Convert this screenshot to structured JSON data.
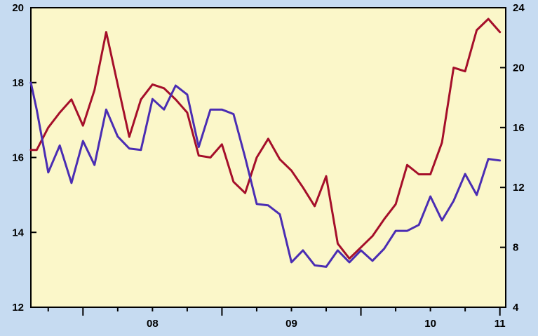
{
  "chart_data": {
    "type": "line",
    "title": "",
    "xlabel": "",
    "ylabel": "",
    "x_ticks": [
      {
        "label": "08",
        "value": 2008
      },
      {
        "label": "09",
        "value": 2009
      },
      {
        "label": "10",
        "value": 2010
      },
      {
        "label": "11",
        "value": 2011
      }
    ],
    "x_range": [
      2007.625,
      2011.042
    ],
    "y_left": {
      "range": [
        12,
        20
      ],
      "ticks": [
        "12",
        "14",
        "16",
        "18",
        "20"
      ]
    },
    "y_right": {
      "range": [
        4,
        24
      ],
      "ticks": [
        "4",
        "8",
        "12",
        "16",
        "20",
        "24"
      ]
    },
    "grid": false,
    "colors": {
      "background": "#c6dbf1",
      "plot_area": "#fbf7c9",
      "left_series": "#a50f2a",
      "right_series": "#4a2db3"
    },
    "x": [
      2007.625,
      2007.667,
      2007.75,
      2007.833,
      2007.917,
      2008.0,
      2008.083,
      2008.167,
      2008.25,
      2008.333,
      2008.417,
      2008.5,
      2008.583,
      2008.667,
      2008.75,
      2008.833,
      2008.917,
      2009.0,
      2009.083,
      2009.167,
      2009.25,
      2009.333,
      2009.417,
      2009.5,
      2009.583,
      2009.667,
      2009.75,
      2009.833,
      2009.917,
      2010.0,
      2010.083,
      2010.167,
      2010.25,
      2010.333,
      2010.417,
      2010.5,
      2010.583,
      2010.667,
      2010.75,
      2010.833,
      2010.917,
      2011.0
    ],
    "series": [
      {
        "axis": "left",
        "values": [
          16.2,
          16.2,
          16.8,
          17.2,
          17.55,
          16.85,
          17.8,
          19.35,
          17.95,
          16.55,
          17.55,
          17.95,
          17.85,
          17.55,
          17.2,
          16.05,
          16.0,
          16.35,
          15.35,
          15.05,
          16.0,
          16.5,
          15.95,
          15.65,
          15.2,
          14.7,
          15.5,
          13.7,
          13.3,
          13.6,
          13.9,
          14.35,
          14.75,
          15.8,
          15.55,
          15.55,
          16.4,
          18.4,
          18.3,
          19.4,
          19.7,
          19.35
        ]
      },
      {
        "axis": "right",
        "values": [
          19.0,
          17.2,
          13.0,
          14.8,
          12.3,
          15.1,
          13.5,
          17.2,
          15.4,
          14.6,
          14.5,
          17.9,
          17.2,
          18.8,
          18.2,
          14.7,
          17.2,
          17.2,
          16.9,
          14.0,
          10.9,
          10.8,
          10.2,
          7.0,
          7.8,
          6.8,
          6.7,
          7.8,
          7.0,
          7.8,
          7.1,
          7.9,
          9.1,
          9.1,
          9.5,
          11.4,
          9.8,
          11.1,
          12.9,
          11.5,
          13.9,
          13.8
        ]
      }
    ]
  }
}
